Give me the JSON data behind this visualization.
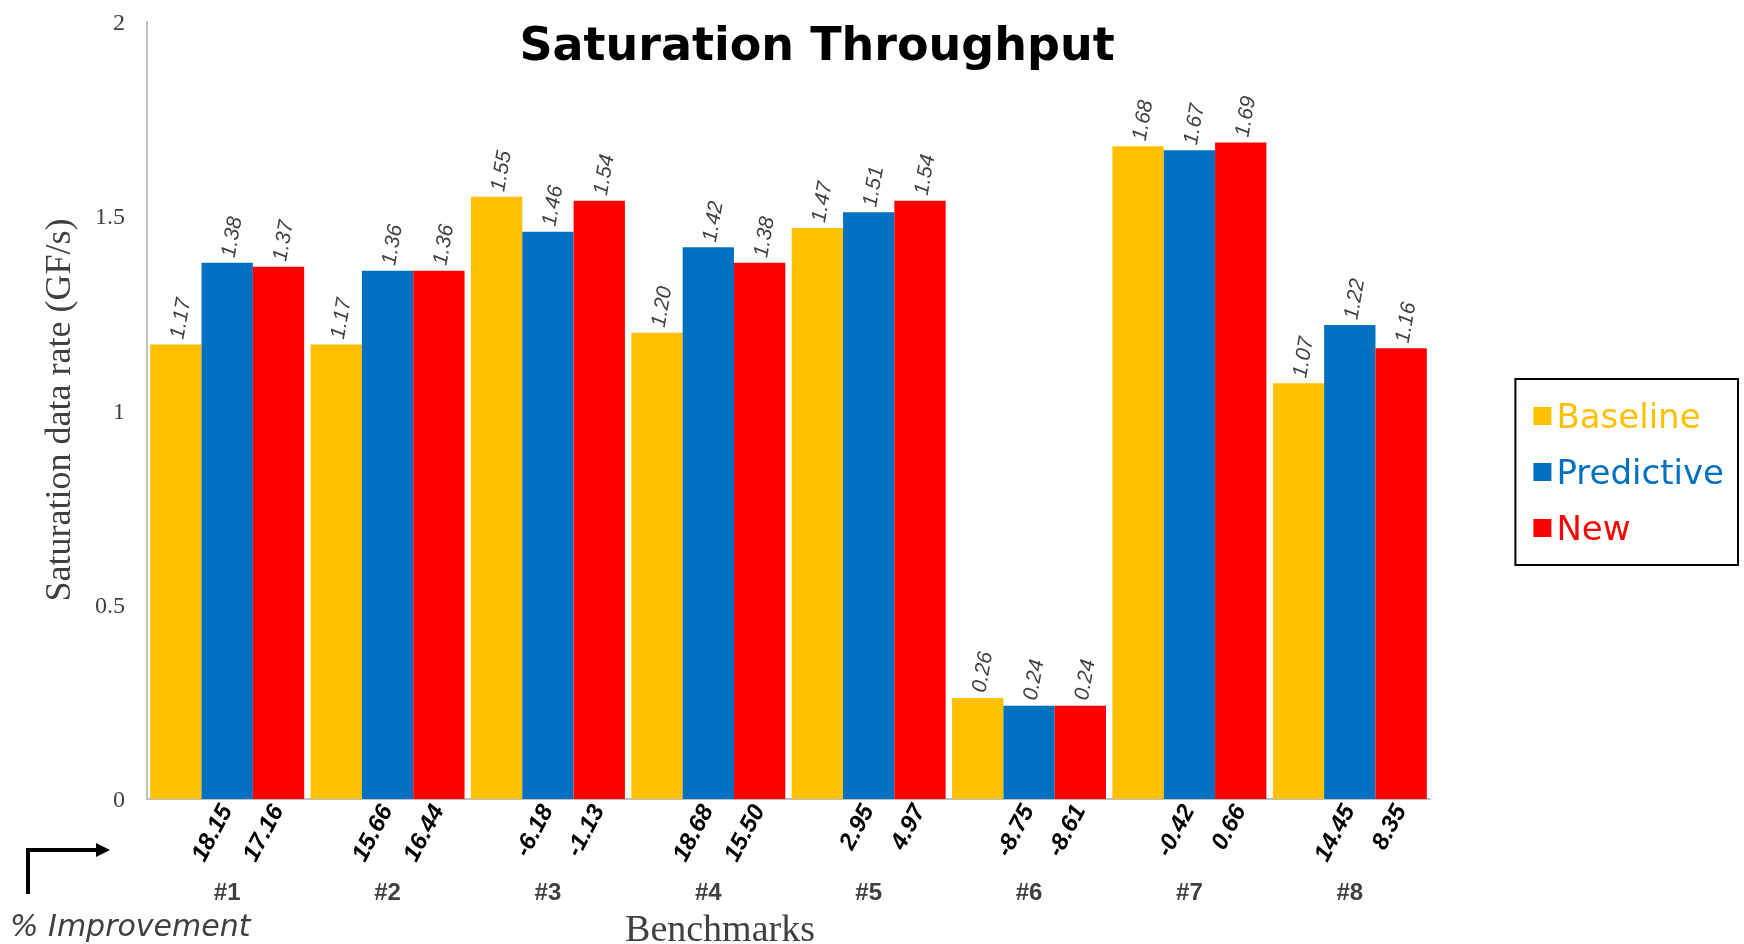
{
  "chart_data": {
    "type": "bar",
    "title": "Saturation Throughput",
    "xlabel": "Benchmarks",
    "ylabel": "Saturation data rate (GF/s)",
    "categories": [
      "#1",
      "#2",
      "#3",
      "#4",
      "#5",
      "#6",
      "#7",
      "#8"
    ],
    "series": [
      {
        "name": "Baseline",
        "color": "#ffc000",
        "values": [
          1.17,
          1.17,
          1.55,
          1.2,
          1.47,
          0.26,
          1.68,
          1.07
        ],
        "value_labels": [
          "1.17",
          "1.17",
          "1.55",
          "1.20",
          "1.47",
          "0.26",
          "1.68",
          "1.07"
        ]
      },
      {
        "name": "Predictive",
        "color": "#0070c0",
        "values": [
          1.38,
          1.36,
          1.46,
          1.42,
          1.51,
          0.24,
          1.67,
          1.22
        ],
        "value_labels": [
          "1.38",
          "1.36",
          "1.46",
          "1.42",
          "1.51",
          "0.24",
          "1.67",
          "1.22"
        ]
      },
      {
        "name": "New",
        "color": "#ff0000",
        "values": [
          1.37,
          1.36,
          1.54,
          1.38,
          1.54,
          0.24,
          1.69,
          1.16
        ],
        "value_labels": [
          "1.37",
          "1.36",
          "1.54",
          "1.38",
          "1.54",
          "0.24",
          "1.69",
          "1.16"
        ]
      }
    ],
    "ylim": [
      0,
      2
    ],
    "yticks": [
      0,
      0.5,
      1,
      1.5,
      2
    ],
    "grid": false,
    "legend": "right",
    "annotations": [
      "18.15",
      "17.16",
      "15.66",
      "16.44",
      "-6.18",
      "-1.13",
      "18.68",
      "15.50",
      "2.95",
      "4.97",
      "-8.75",
      "-8.61",
      "-0.42",
      "0.66",
      "14.45",
      "8.35",
      "% Improvement"
    ]
  }
}
